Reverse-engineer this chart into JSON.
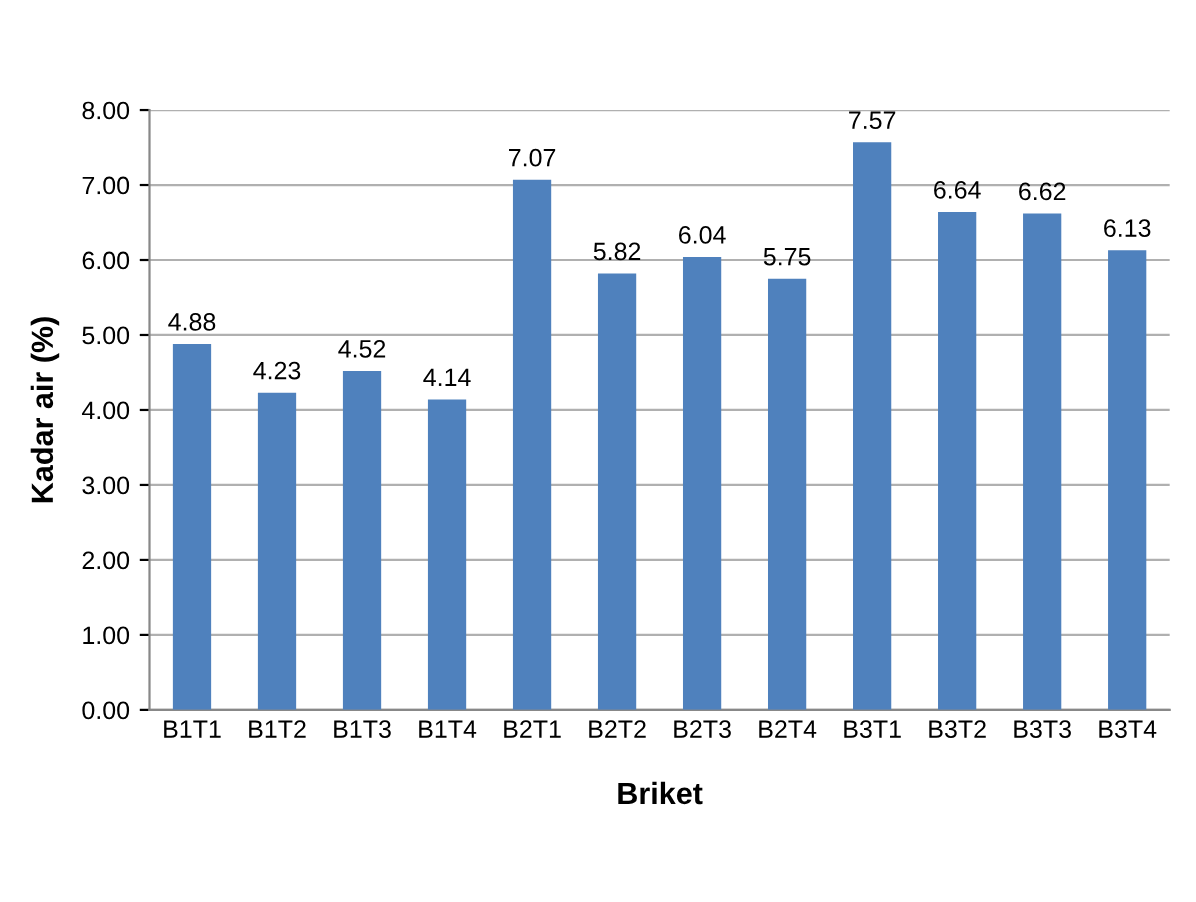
{
  "chart_data": {
    "type": "bar",
    "xlabel": "Briket",
    "ylabel": "Kadar air (%)",
    "categories": [
      "B1T1",
      "B1T2",
      "B1T3",
      "B1T4",
      "B2T1",
      "B2T2",
      "B2T3",
      "B2T4",
      "B3T1",
      "B3T2",
      "B3T3",
      "B3T4"
    ],
    "values": [
      4.88,
      4.23,
      4.52,
      4.14,
      7.07,
      5.82,
      6.04,
      5.75,
      7.57,
      6.64,
      6.62,
      6.13
    ],
    "color": "#4f81bd",
    "data_labels": true,
    "grid": "y",
    "legend": false,
    "ylim": [
      0,
      8
    ],
    "yticks": [
      {
        "value": 0,
        "label": "0.00"
      },
      {
        "value": 1,
        "label": "1.00"
      },
      {
        "value": 2,
        "label": "2.00"
      },
      {
        "value": 3,
        "label": "3.00"
      },
      {
        "value": 4,
        "label": "4.00"
      },
      {
        "value": 5,
        "label": "5.00"
      },
      {
        "value": 6,
        "label": "6.00"
      },
      {
        "value": 7,
        "label": "7.00"
      },
      {
        "value": 8,
        "label": "8.00"
      }
    ]
  }
}
